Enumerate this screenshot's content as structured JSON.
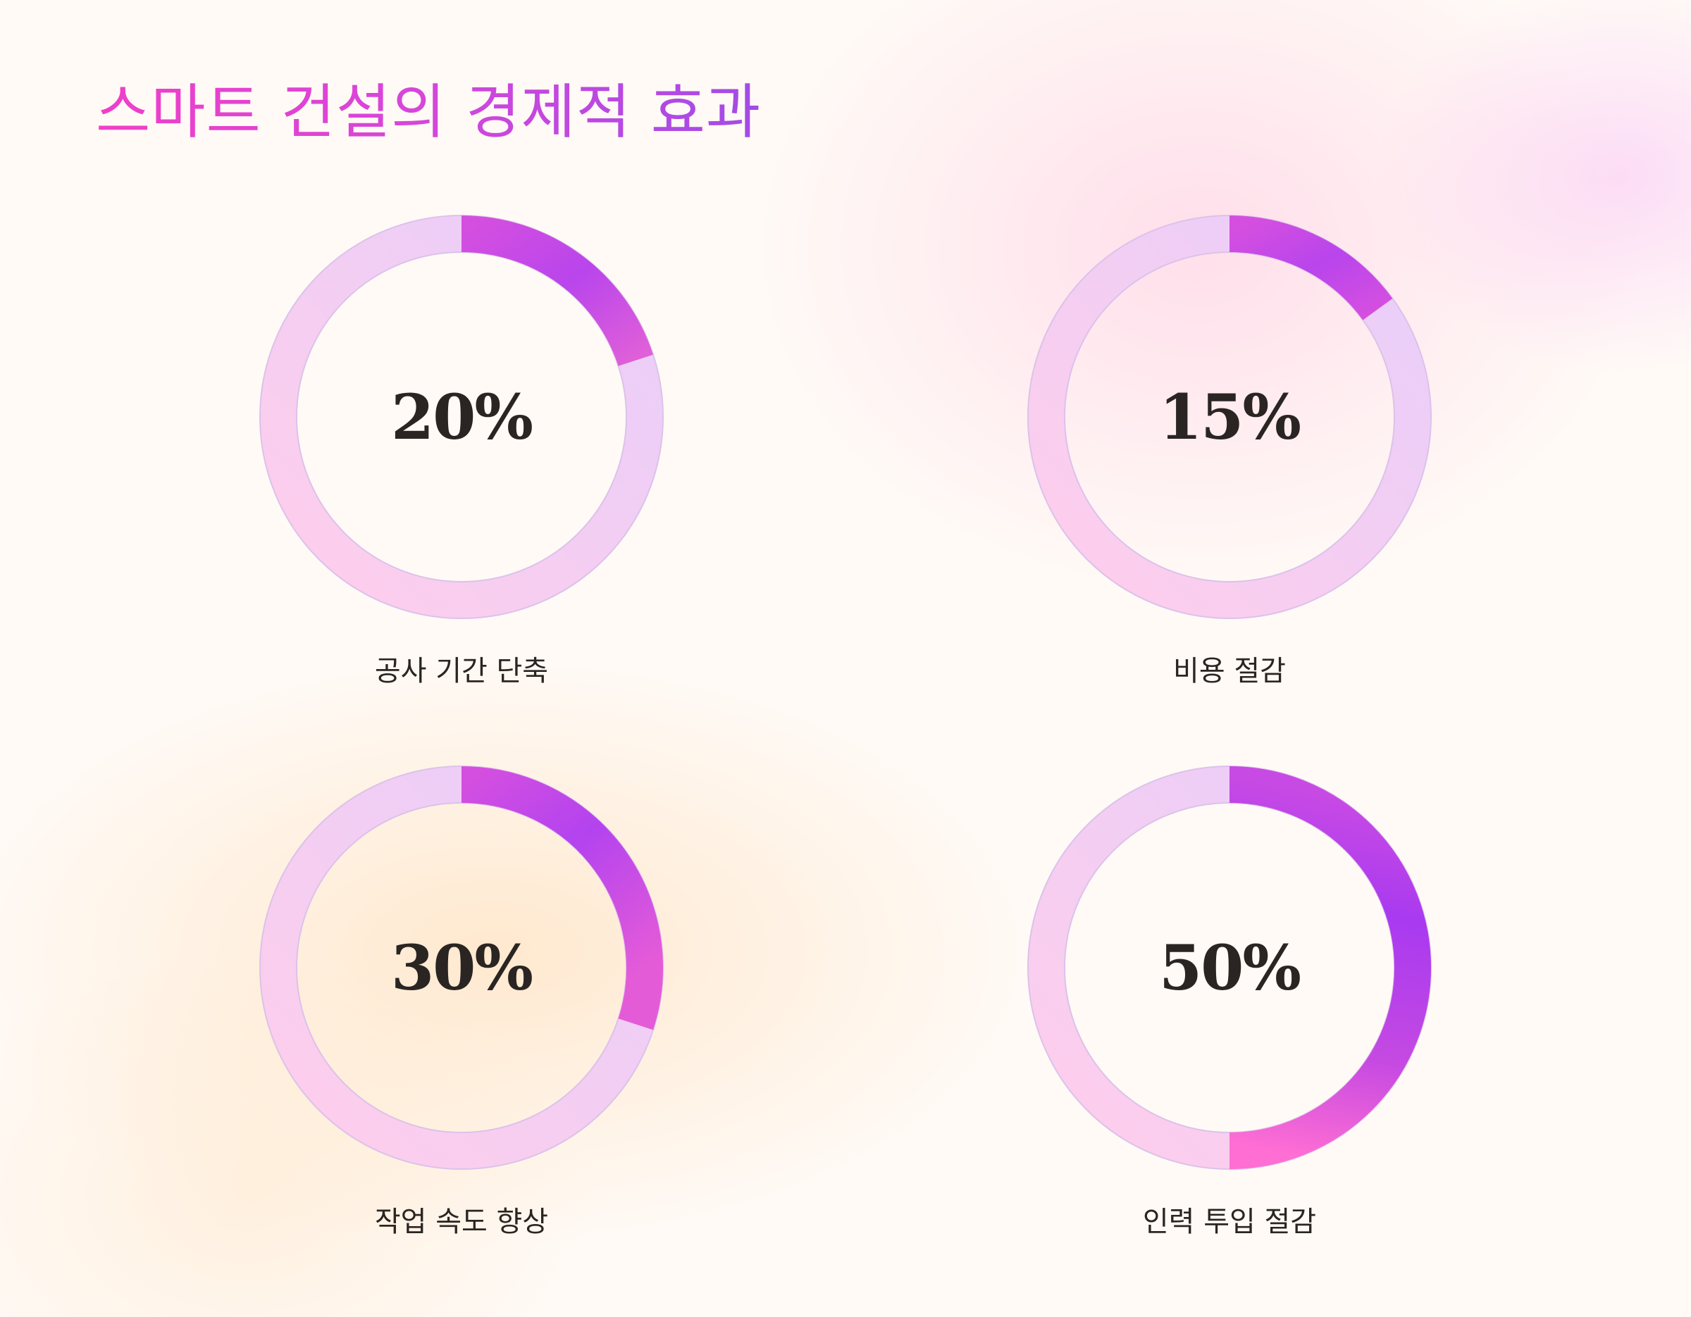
{
  "title": "스마트 건설의 경제적 효과",
  "colors": {
    "track_start": "#ffcdeb",
    "track_end": "#e8cffa",
    "arc_start": "#ff6ed3",
    "arc_mid": "#d44fe0",
    "arc_end": "#a93af0"
  },
  "chart_data": [
    {
      "type": "pie",
      "variant": "donut",
      "value": 20,
      "max": 100,
      "value_label": "20%",
      "label": "공사 기간 단축"
    },
    {
      "type": "pie",
      "variant": "donut",
      "value": 15,
      "max": 100,
      "value_label": "15%",
      "label": "비용 절감"
    },
    {
      "type": "pie",
      "variant": "donut",
      "value": 30,
      "max": 100,
      "value_label": "30%",
      "label": "작업 속도 향상"
    },
    {
      "type": "pie",
      "variant": "donut",
      "value": 50,
      "max": 100,
      "value_label": "50%",
      "label": "인력 투입 절감"
    }
  ]
}
